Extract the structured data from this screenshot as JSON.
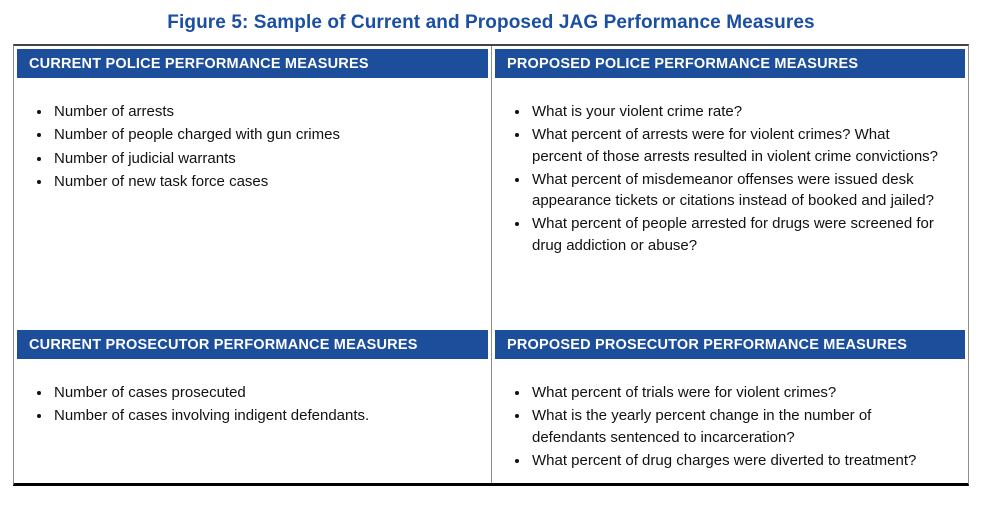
{
  "title": "Figure 5: Sample of Current and Proposed JAG Performance Measures",
  "colors": {
    "header_bg": "#1d4e9c",
    "title_color": "#1b4fa3",
    "border_gray": "#8c8c8c",
    "bottom_rule": "#000000"
  },
  "table": {
    "sections": [
      {
        "left": {
          "header": "CURRENT POLICE PERFORMANCE MEASURES",
          "items": [
            "Number of arrests",
            "Number of people charged with gun crimes",
            "Number of judicial warrants",
            "Number of new task force cases"
          ]
        },
        "right": {
          "header": "PROPOSED POLICE PERFORMANCE MEASURES",
          "items": [
            "What is your violent crime rate?",
            "What percent of arrests were for violent crimes? What percent of those arrests resulted in violent crime convictions?",
            "What percent of misdemeanor offenses were issued desk appearance tickets or citations instead of booked and jailed?",
            "What percent of people arrested for drugs were screened for drug addiction or abuse?"
          ]
        }
      },
      {
        "left": {
          "header": "CURRENT PROSECUTOR PERFORMANCE MEASURES",
          "items": [
            "Number of cases prosecuted",
            "Number of cases involving indigent defendants."
          ]
        },
        "right": {
          "header": "PROPOSED PROSECUTOR PERFORMANCE MEASURES",
          "items": [
            "What percent of trials were for violent crimes?",
            "What is the yearly percent change in the number of defendants sentenced to incarceration?",
            "What percent of drug charges were diverted to treatment?"
          ]
        }
      }
    ]
  }
}
